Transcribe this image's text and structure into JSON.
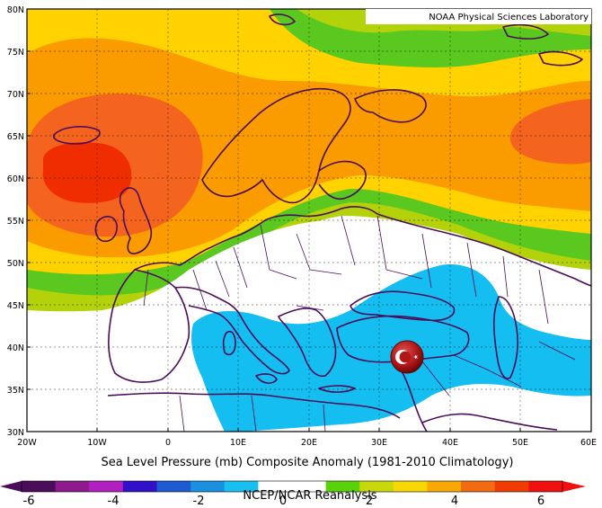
{
  "credit": "NOAA Physical Sciences Laboratory",
  "title": "Sea Level Pressure (mb) Composite Anomaly (1981-2010 Climatology)",
  "footer": "NCEP/NCAR Reanalysis",
  "lat_labels": [
    "80N",
    "75N",
    "70N",
    "65N",
    "60N",
    "55N",
    "50N",
    "45N",
    "40N",
    "35N",
    "30N"
  ],
  "lon_labels": [
    "20W",
    "10W",
    "0",
    "10E",
    "20E",
    "30E",
    "40E",
    "50E",
    "60E"
  ],
  "colorbar": {
    "tick_labels": [
      "-6",
      "-4",
      "-2",
      "0",
      "2",
      "4",
      "6"
    ],
    "colors": [
      "#4b0c5a",
      "#8e1a8e",
      "#b01fc0",
      "#3010c8",
      "#1e5ad2",
      "#1a90e0",
      "#18c0f0",
      "#ffffff",
      "#ffffff",
      "#5ad20a",
      "#c8d80a",
      "#f8d800",
      "#f8a800",
      "#f46a10",
      "#f03c00",
      "#f01010"
    ]
  },
  "anomaly_colors": {
    "yellow_green": "#b4d20a",
    "green": "#5ac81e",
    "yellow": "#ffd200",
    "orange": "#fa9b00",
    "red_orange": "#f5641e",
    "red": "#f02d00",
    "light_blue": "#14bef0"
  },
  "flag_marker": {
    "name": "turkey-flag",
    "lon": 35,
    "lat": 39
  }
}
